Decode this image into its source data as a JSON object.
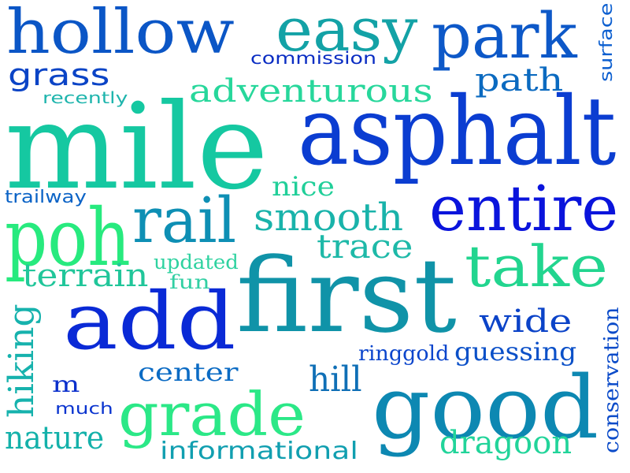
{
  "cloud": {
    "words": [
      {
        "id": "hollow",
        "text": "hollow",
        "color": "#0b56c6"
      },
      {
        "id": "easy",
        "text": "easy",
        "color": "#13a2a6"
      },
      {
        "id": "park",
        "text": "park",
        "color": "#0d58c8"
      },
      {
        "id": "surface",
        "text": "surface",
        "color": "#0c5fd0"
      },
      {
        "id": "commission",
        "text": "commission",
        "color": "#0a2dc3"
      },
      {
        "id": "grass",
        "text": "grass",
        "color": "#0b44c6"
      },
      {
        "id": "adventurous",
        "text": "adventurous",
        "color": "#27d79b"
      },
      {
        "id": "path",
        "text": "path",
        "color": "#0b6ac0"
      },
      {
        "id": "recently",
        "text": "recently",
        "color": "#1fb5ad"
      },
      {
        "id": "mile",
        "text": "mile",
        "color": "#15c8a1"
      },
      {
        "id": "asphalt",
        "text": "asphalt",
        "color": "#0b3dd1"
      },
      {
        "id": "nice",
        "text": "nice",
        "color": "#21cf99"
      },
      {
        "id": "trailway",
        "text": "trailway",
        "color": "#0b63c6"
      },
      {
        "id": "entire",
        "text": "entire",
        "color": "#0a14dc"
      },
      {
        "id": "poh",
        "text": "poh",
        "color": "#27ea7e"
      },
      {
        "id": "rail",
        "text": "rail",
        "color": "#0e8fb4"
      },
      {
        "id": "smooth",
        "text": "smooth",
        "color": "#19b3aa"
      },
      {
        "id": "trace",
        "text": "trace",
        "color": "#1eb9a8"
      },
      {
        "id": "take",
        "text": "take",
        "color": "#22d58f"
      },
      {
        "id": "updated",
        "text": "updated",
        "color": "#2fd2a0"
      },
      {
        "id": "terrain",
        "text": "terrain",
        "color": "#21c69a"
      },
      {
        "id": "fun",
        "text": "fun",
        "color": "#32cfa3"
      },
      {
        "id": "first",
        "text": "first",
        "color": "#1093a8"
      },
      {
        "id": "add",
        "text": "add",
        "color": "#0a2ad6"
      },
      {
        "id": "wide",
        "text": "wide",
        "color": "#0b43c8"
      },
      {
        "id": "hiking",
        "text": "hiking",
        "color": "#16b2ad"
      },
      {
        "id": "ringgold",
        "text": "ringgold",
        "color": "#0b45cc"
      },
      {
        "id": "guessing",
        "text": "guessing",
        "color": "#0b50c8"
      },
      {
        "id": "center",
        "text": "center",
        "color": "#0b6bc4"
      },
      {
        "id": "m",
        "text": "m",
        "color": "#0a2fcc"
      },
      {
        "id": "hill",
        "text": "hill",
        "color": "#0f6fb6"
      },
      {
        "id": "good",
        "text": "good",
        "color": "#0d88b2"
      },
      {
        "id": "conservation",
        "text": "conservation",
        "color": "#0b4bc9"
      },
      {
        "id": "much",
        "text": "much",
        "color": "#0a34cf"
      },
      {
        "id": "grade",
        "text": "grade",
        "color": "#2be887"
      },
      {
        "id": "nature",
        "text": "nature",
        "color": "#14b1aa"
      },
      {
        "id": "informational",
        "text": "informational",
        "color": "#119fb0"
      },
      {
        "id": "dragoon",
        "text": "dragoon",
        "color": "#22d49a"
      }
    ]
  }
}
